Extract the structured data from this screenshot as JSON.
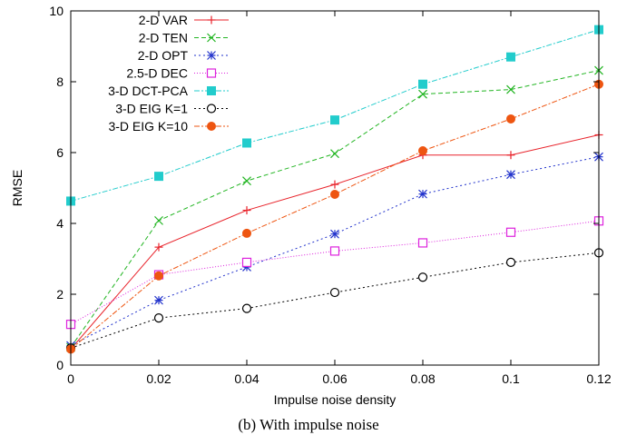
{
  "caption": "(b)  With impulse noise",
  "chart_data": {
    "type": "line",
    "xlabel": "Impulse noise density",
    "ylabel": "RMSE",
    "x": [
      0,
      0.02,
      0.04,
      0.06,
      0.08,
      0.1,
      0.12
    ],
    "x_tick_labels": [
      "0",
      "0.02",
      "0.04",
      "0.06",
      "0.08",
      "0.1",
      "0.12"
    ],
    "y_ticks": [
      0,
      2,
      4,
      6,
      8,
      10
    ],
    "y_tick_labels": [
      "0",
      "2",
      "4",
      "6",
      "8",
      "10"
    ],
    "xlim": [
      0,
      0.12
    ],
    "ylim": [
      0,
      10
    ],
    "grid": false,
    "legend_position": "top-left",
    "series": [
      {
        "name": "2-D VAR",
        "color": "#e8222a",
        "marker": "plus",
        "dash": "",
        "values": [
          0.45,
          3.33,
          4.37,
          5.1,
          5.93,
          5.93,
          6.5
        ]
      },
      {
        "name": "2-D TEN",
        "color": "#22b522",
        "marker": "cross",
        "dash": "5,3",
        "values": [
          0.5,
          4.08,
          5.2,
          5.97,
          7.65,
          7.78,
          8.32
        ]
      },
      {
        "name": "2-D OPT",
        "color": "#2233cc",
        "marker": "star",
        "dash": "2,3",
        "values": [
          0.55,
          1.83,
          2.77,
          3.7,
          4.83,
          5.38,
          5.88
        ]
      },
      {
        "name": "2.5-D DEC",
        "color": "#dd22dd",
        "marker": "square-open",
        "dash": "1,2",
        "values": [
          1.15,
          2.55,
          2.9,
          3.22,
          3.45,
          3.75,
          4.07
        ]
      },
      {
        "name": "3-D DCT-PCA",
        "color": "#22cccc",
        "marker": "square-filled",
        "dash": "6,2,2,2",
        "values": [
          4.63,
          5.33,
          6.27,
          6.92,
          7.93,
          8.7,
          9.47
        ]
      },
      {
        "name": "3-D EIG K=1",
        "color": "#000000",
        "marker": "circle-open",
        "dash": "2,3",
        "values": [
          0.48,
          1.33,
          1.6,
          2.05,
          2.48,
          2.9,
          3.17
        ]
      },
      {
        "name": "3-D EIG K=10",
        "color": "#ee5511",
        "marker": "circle-filled",
        "dash": "6,2,2,2",
        "values": [
          0.45,
          2.52,
          3.72,
          4.82,
          6.05,
          6.95,
          7.93
        ]
      }
    ]
  }
}
